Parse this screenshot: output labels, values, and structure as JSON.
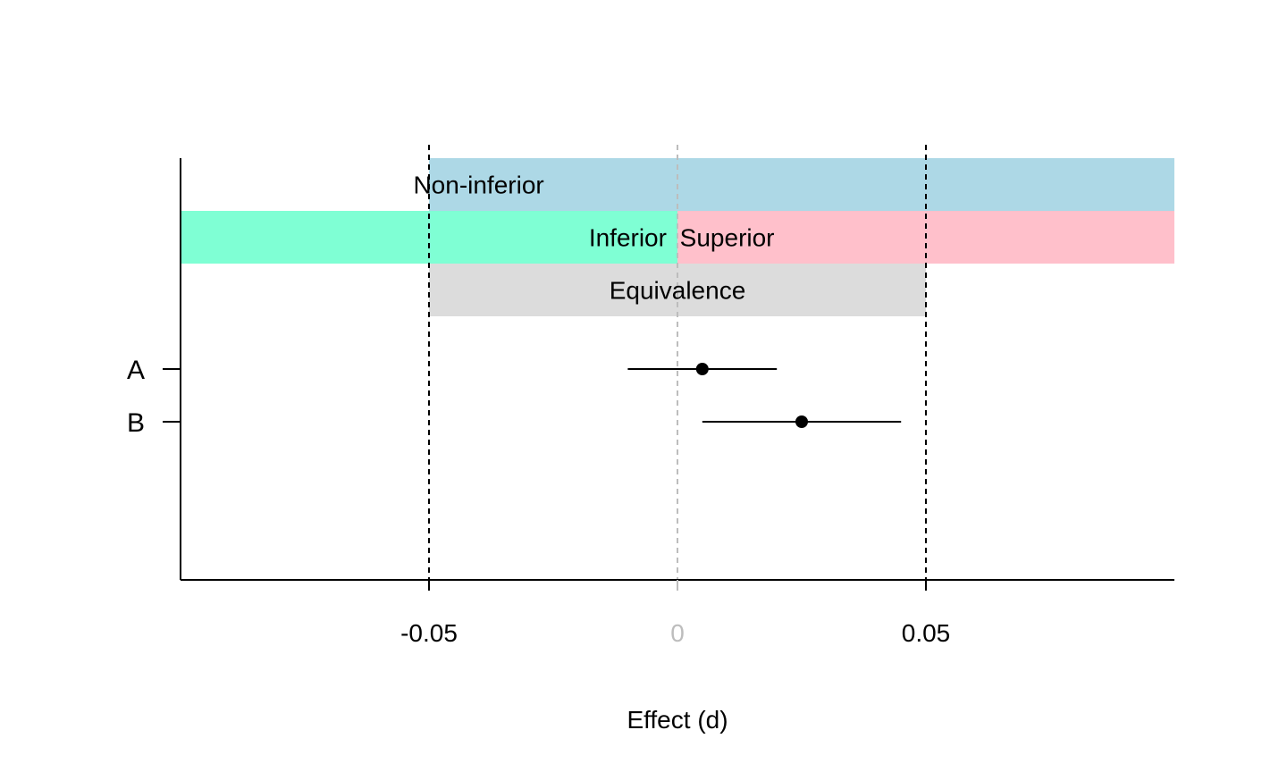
{
  "chart_data": {
    "type": "scatter",
    "xlabel": "Effect (d)",
    "xlim": [
      -0.1,
      0.1
    ],
    "ticks": [
      {
        "value": -0.05,
        "label": "-0.05",
        "color": "#000000"
      },
      {
        "value": 0,
        "label": "0",
        "color": "#bdbdbd"
      },
      {
        "value": 0.05,
        "label": "0.05",
        "color": "#000000"
      }
    ],
    "reference_lines": [
      {
        "value": -0.05,
        "color": "#000000",
        "style": "dashed"
      },
      {
        "value": 0,
        "color": "#bdbdbd",
        "style": "dashed"
      },
      {
        "value": 0.05,
        "color": "#000000",
        "style": "dashed"
      }
    ],
    "regions": [
      {
        "label": "Non-inferior",
        "from": -0.05,
        "to": 0.1,
        "row": 0,
        "color": "#add8e6",
        "label_at": -0.04
      },
      {
        "label": "Inferior",
        "from": -0.1,
        "to": 0,
        "row": 1,
        "color": "#7fffd4",
        "label_at": -0.01
      },
      {
        "label": "Superior",
        "from": 0,
        "to": 0.1,
        "row": 1,
        "color": "#ffc0cb",
        "label_at": 0.01
      },
      {
        "label": "Equivalence",
        "from": -0.05,
        "to": 0.05,
        "row": 2,
        "color": "#dcdcdc",
        "label_at": 0
      }
    ],
    "categories": [
      "A",
      "B"
    ],
    "estimates": [
      {
        "label": "A",
        "estimate": 0.005,
        "lower": -0.01,
        "upper": 0.02
      },
      {
        "label": "B",
        "estimate": 0.025,
        "lower": 0.005,
        "upper": 0.045
      }
    ]
  }
}
